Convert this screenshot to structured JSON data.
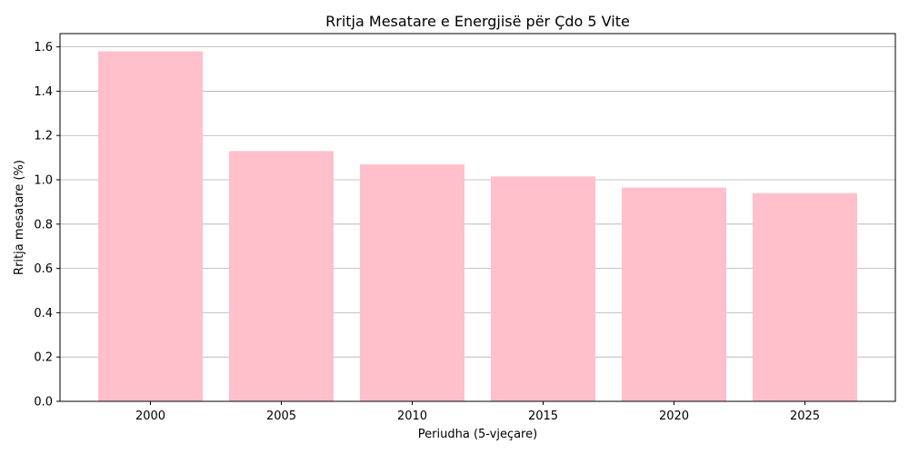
{
  "chart_data": {
    "type": "bar",
    "title": "Rritja Mesatare e Energjisë për Çdo 5 Vite",
    "xlabel": "Periudha (5-vjeçare)",
    "ylabel": "Rritja mesatare (%)",
    "categories": [
      "2000",
      "2005",
      "2010",
      "2015",
      "2020",
      "2025"
    ],
    "values": [
      1.58,
      1.13,
      1.07,
      1.015,
      0.965,
      0.94
    ],
    "ylim": [
      0,
      1.66
    ],
    "yticks": [
      "0.0",
      "0.2",
      "0.4",
      "0.6",
      "0.8",
      "1.0",
      "1.2",
      "1.4",
      "1.6"
    ],
    "grid": "y-axis only",
    "legend": "none",
    "colors": {
      "bar": "#ffc0cb",
      "grid": "#b0b0b0",
      "axis": "#000000"
    }
  }
}
